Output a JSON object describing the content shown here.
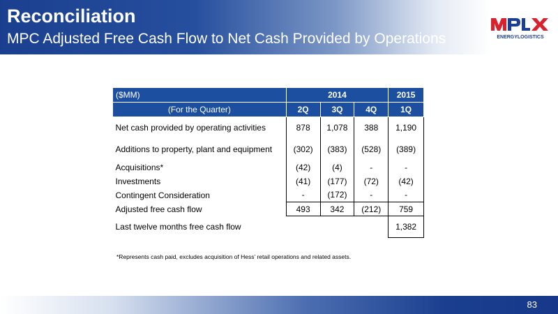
{
  "header": {
    "title": "Reconciliation",
    "subtitle": "MPC Adjusted Free Cash Flow to Net Cash Provided by Operations"
  },
  "logo": {
    "brand": "MPLX",
    "tagline": "ENERGYLOGISTICS",
    "colors": {
      "red": "#d7232f",
      "blue": "#1c3f94"
    }
  },
  "table": {
    "unit_label": "($MM)",
    "period_label": "(For the Quarter)",
    "years": [
      "2014",
      "2015"
    ],
    "quarters": [
      "2Q",
      "3Q",
      "4Q",
      "1Q"
    ],
    "rows": [
      {
        "label": "Net cash provided by operating activities",
        "values": [
          "878",
          "1,078",
          "388",
          "1,190"
        ]
      },
      {
        "label": "Additions to property, plant and equipment",
        "values": [
          "(302)",
          "(383)",
          "(528)",
          "(389)"
        ]
      },
      {
        "label": "Acquisitions*",
        "values": [
          "(42)",
          "(4)",
          "-",
          "-"
        ]
      },
      {
        "label": "Investments",
        "values": [
          "(41)",
          "(177)",
          "(72)",
          "(42)"
        ]
      },
      {
        "label": "Contingent Consideration",
        "values": [
          "-",
          "(172)",
          "-",
          "-"
        ]
      },
      {
        "label": "Adjusted free cash flow",
        "values": [
          "493",
          "342",
          "(212)",
          "759"
        ]
      }
    ],
    "ltm": {
      "label": "Last twelve months free cash flow",
      "value": "1,382"
    },
    "header_color": "#1c4fa0"
  },
  "footnote": "*Represents cash paid, excludes acquisition of Hess’ retail operations and related assets.",
  "page_number": "83"
}
